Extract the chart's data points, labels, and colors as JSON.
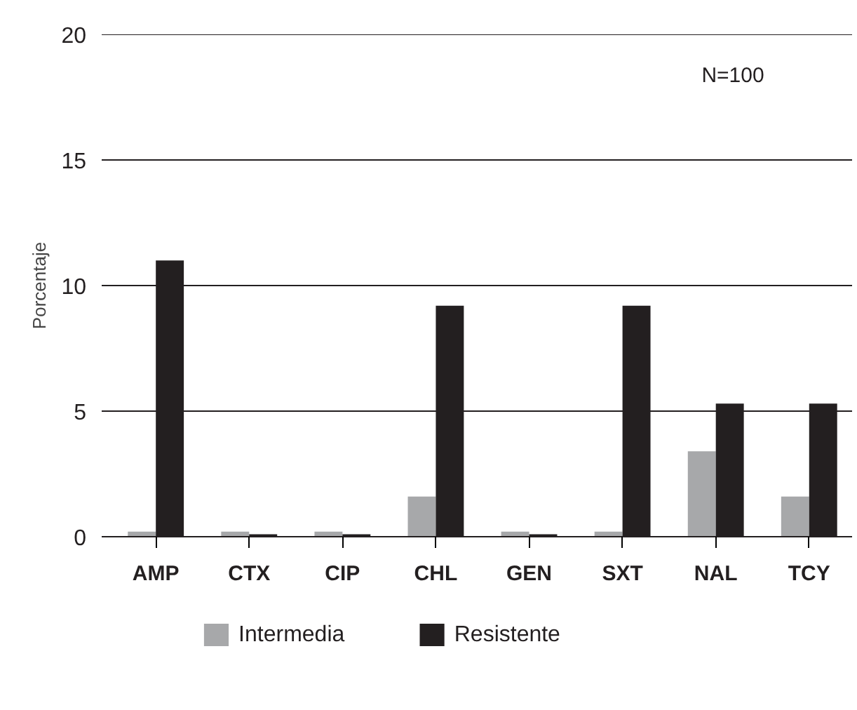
{
  "chart_data": {
    "type": "bar",
    "ylabel": "Porcentaje",
    "categories": [
      "AMP",
      "CTX",
      "CIP",
      "CHL",
      "GEN",
      "SXT",
      "NAL",
      "TCY"
    ],
    "series": [
      {
        "name": "Intermedia",
        "color": "#a7a8aa",
        "values": [
          0.2,
          0.2,
          0.2,
          1.6,
          0.2,
          0.2,
          3.4,
          1.6
        ]
      },
      {
        "name": "Resistente",
        "color": "#231f20",
        "values": [
          11,
          0.1,
          0.1,
          9.2,
          0.1,
          9.2,
          5.3,
          5.3
        ]
      }
    ],
    "ylim": [
      0,
      20
    ],
    "yticks": [
      0,
      5,
      10,
      15,
      20
    ],
    "grid": "y",
    "legend": "bottom left",
    "annotations": [
      "N=100"
    ]
  }
}
